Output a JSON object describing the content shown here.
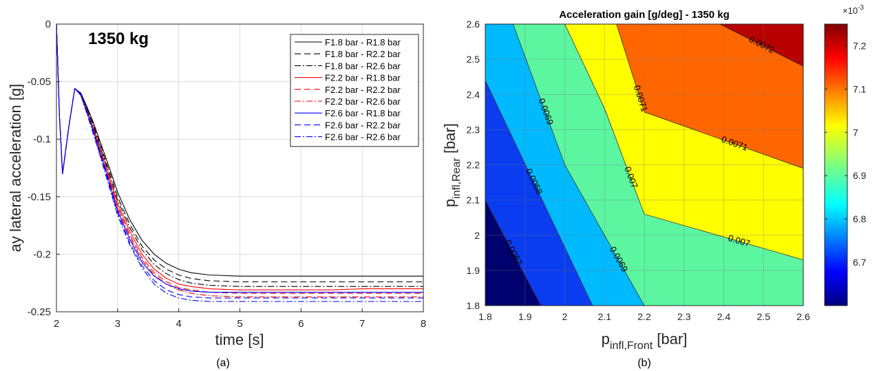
{
  "chart_data": [
    {
      "type": "line",
      "panel_caption": "(a)",
      "annotation": "1350 kg",
      "xlabel": "time [s]",
      "ylabel": "ay lateral acceleration [g]",
      "xlim": [
        2,
        8
      ],
      "ylim": [
        -0.25,
        0
      ],
      "xticks": [
        2,
        3,
        4,
        5,
        6,
        7,
        8
      ],
      "yticks": [
        0,
        -0.05,
        -0.1,
        -0.15,
        -0.2,
        -0.25
      ],
      "xtick_labels": [
        "2",
        "3",
        "4",
        "5",
        "6",
        "7",
        "8"
      ],
      "ytick_labels": [
        "0",
        "-0.05",
        "-0.1",
        "-0.15",
        "-0.2",
        "-0.25"
      ],
      "grid": true,
      "legend_position": "top-right",
      "x": [
        2.0,
        2.05,
        2.1,
        2.2,
        2.3,
        2.4,
        2.5,
        2.6,
        2.7,
        2.8,
        2.9,
        3.0,
        3.2,
        3.4,
        3.6,
        3.8,
        4.0,
        4.2,
        4.5,
        5.0,
        5.5,
        6.0,
        6.5,
        7.0,
        7.5,
        8.0
      ],
      "series": [
        {
          "name": "F1.8 bar - R1.8 bar",
          "color": "#000000",
          "dash": "solid",
          "values": [
            0,
            -0.08,
            -0.13,
            -0.09,
            -0.056,
            -0.06,
            -0.072,
            -0.085,
            -0.1,
            -0.115,
            -0.13,
            -0.146,
            -0.17,
            -0.188,
            -0.2,
            -0.208,
            -0.213,
            -0.216,
            -0.218,
            -0.219,
            -0.219,
            -0.219,
            -0.219,
            -0.219,
            -0.219,
            -0.219
          ]
        },
        {
          "name": "F1.8 bar - R2.2 bar",
          "color": "#000000",
          "dash": "dashed",
          "values": [
            0,
            -0.08,
            -0.13,
            -0.09,
            -0.056,
            -0.06,
            -0.073,
            -0.087,
            -0.102,
            -0.118,
            -0.133,
            -0.15,
            -0.174,
            -0.193,
            -0.205,
            -0.213,
            -0.218,
            -0.221,
            -0.223,
            -0.224,
            -0.224,
            -0.224,
            -0.224,
            -0.224,
            -0.224,
            -0.224
          ]
        },
        {
          "name": "F1.8 bar - R2.6 bar",
          "color": "#000000",
          "dash": "dashdot",
          "values": [
            0,
            -0.08,
            -0.13,
            -0.09,
            -0.056,
            -0.06,
            -0.073,
            -0.088,
            -0.104,
            -0.12,
            -0.136,
            -0.153,
            -0.177,
            -0.196,
            -0.209,
            -0.217,
            -0.222,
            -0.225,
            -0.227,
            -0.228,
            -0.228,
            -0.228,
            -0.228,
            -0.228,
            -0.228,
            -0.228
          ]
        },
        {
          "name": "F2.2 bar - R1.8 bar",
          "color": "#ff0000",
          "dash": "solid",
          "values": [
            0,
            -0.08,
            -0.13,
            -0.09,
            -0.056,
            -0.061,
            -0.075,
            -0.09,
            -0.106,
            -0.122,
            -0.139,
            -0.156,
            -0.18,
            -0.2,
            -0.213,
            -0.221,
            -0.226,
            -0.228,
            -0.23,
            -0.231,
            -0.231,
            -0.231,
            -0.231,
            -0.23,
            -0.23,
            -0.23
          ]
        },
        {
          "name": "F2.2 bar - R2.2 bar",
          "color": "#ff0000",
          "dash": "dashed",
          "values": [
            0,
            -0.08,
            -0.13,
            -0.09,
            -0.056,
            -0.061,
            -0.075,
            -0.091,
            -0.107,
            -0.124,
            -0.141,
            -0.158,
            -0.183,
            -0.203,
            -0.216,
            -0.224,
            -0.229,
            -0.231,
            -0.233,
            -0.234,
            -0.234,
            -0.234,
            -0.234,
            -0.234,
            -0.234,
            -0.234
          ]
        },
        {
          "name": "F2.2 bar - R2.6 bar",
          "color": "#ff0000",
          "dash": "dashdot",
          "values": [
            0,
            -0.08,
            -0.13,
            -0.09,
            -0.056,
            -0.061,
            -0.076,
            -0.092,
            -0.109,
            -0.126,
            -0.143,
            -0.16,
            -0.185,
            -0.205,
            -0.218,
            -0.226,
            -0.231,
            -0.234,
            -0.236,
            -0.237,
            -0.237,
            -0.237,
            -0.237,
            -0.237,
            -0.237,
            -0.237
          ]
        },
        {
          "name": "F2.6 bar - R1.8 bar",
          "color": "#0000ff",
          "dash": "solid",
          "values": [
            0,
            -0.08,
            -0.13,
            -0.09,
            -0.056,
            -0.061,
            -0.076,
            -0.092,
            -0.109,
            -0.126,
            -0.144,
            -0.162,
            -0.187,
            -0.207,
            -0.219,
            -0.226,
            -0.23,
            -0.232,
            -0.233,
            -0.233,
            -0.233,
            -0.233,
            -0.233,
            -0.233,
            -0.233,
            -0.233
          ]
        },
        {
          "name": "F2.6 bar - R2.2 bar",
          "color": "#0000ff",
          "dash": "dashed",
          "values": [
            0,
            -0.08,
            -0.13,
            -0.09,
            -0.056,
            -0.062,
            -0.077,
            -0.093,
            -0.111,
            -0.128,
            -0.146,
            -0.164,
            -0.19,
            -0.21,
            -0.223,
            -0.231,
            -0.235,
            -0.237,
            -0.238,
            -0.238,
            -0.238,
            -0.238,
            -0.238,
            -0.238,
            -0.238,
            -0.238
          ]
        },
        {
          "name": "F2.6 bar - R2.6 bar",
          "color": "#0000ff",
          "dash": "dashdot",
          "values": [
            0,
            -0.08,
            -0.13,
            -0.09,
            -0.056,
            -0.062,
            -0.078,
            -0.095,
            -0.112,
            -0.13,
            -0.148,
            -0.166,
            -0.192,
            -0.212,
            -0.226,
            -0.234,
            -0.238,
            -0.24,
            -0.241,
            -0.241,
            -0.241,
            -0.241,
            -0.241,
            -0.241,
            -0.241,
            -0.241
          ]
        }
      ]
    },
    {
      "type": "heatmap",
      "subtype": "filled-contour",
      "panel_caption": "(b)",
      "title": "Acceleration gain [g/deg] - 1350 kg",
      "xlabel_base": "p",
      "xlabel_sub": "infl,Front",
      "xlabel_unit": " [bar]",
      "ylabel_base": "p",
      "ylabel_sub": "infl,Rear",
      "ylabel_unit": " [bar]",
      "xlim": [
        1.8,
        2.6
      ],
      "ylim": [
        1.8,
        2.6
      ],
      "xticks": [
        1.8,
        1.9,
        2.0,
        2.1,
        2.2,
        2.3,
        2.4,
        2.5,
        2.6
      ],
      "yticks": [
        1.8,
        1.9,
        2.0,
        2.1,
        2.2,
        2.3,
        2.4,
        2.5,
        2.6
      ],
      "xtick_labels": [
        "1.8",
        "1.9",
        "2",
        "2.1",
        "2.2",
        "2.3",
        "2.4",
        "2.5",
        "2.6"
      ],
      "ytick_labels": [
        "1.8",
        "1.9",
        "2",
        "2.1",
        "2.2",
        "2.3",
        "2.4",
        "2.5",
        "2.6"
      ],
      "grid": true,
      "contour_lines": [
        {
          "level": 0.0067,
          "label": "0.0067",
          "points": [
            [
              1.8,
              2.1
            ],
            [
              1.94,
              1.8
            ]
          ]
        },
        {
          "level": 0.0068,
          "label": "0.0068",
          "points": [
            [
              1.8,
              2.44
            ],
            [
              2.07,
              1.8
            ]
          ]
        },
        {
          "level": 0.0069,
          "label": "0.0069",
          "points": [
            [
              1.87,
              2.6
            ],
            [
              2.0,
              2.2
            ],
            [
              2.2,
              1.8
            ]
          ]
        },
        {
          "level": 0.007,
          "label": "0.007",
          "points": [
            [
              2.0,
              2.6
            ],
            [
              2.1,
              2.36
            ],
            [
              2.2,
              2.06
            ],
            [
              2.6,
              1.93
            ]
          ]
        },
        {
          "level": 0.0071,
          "label": "0.0071",
          "points": [
            [
              2.13,
              2.6
            ],
            [
              2.2,
              2.35
            ],
            [
              2.6,
              2.19
            ]
          ]
        },
        {
          "level": 0.0072,
          "label": "0.0072",
          "points": [
            [
              2.39,
              2.6
            ],
            [
              2.6,
              2.48
            ]
          ]
        }
      ],
      "band_colors": [
        "#00006e",
        "#0a3cf0",
        "#00baff",
        "#5cf5a0",
        "#ffff00",
        "#ff6600",
        "#b80000"
      ],
      "colorbar": {
        "min": 0.0066,
        "max": 0.00725,
        "ticks": [
          0.0067,
          0.0068,
          0.0069,
          0.007,
          0.0071,
          0.0072
        ],
        "tick_labels": [
          "6.7",
          "6.8",
          "6.9",
          "7",
          "7.1",
          "7.2"
        ],
        "exponent_label": "×10",
        "exponent_power": "-3"
      }
    }
  ]
}
